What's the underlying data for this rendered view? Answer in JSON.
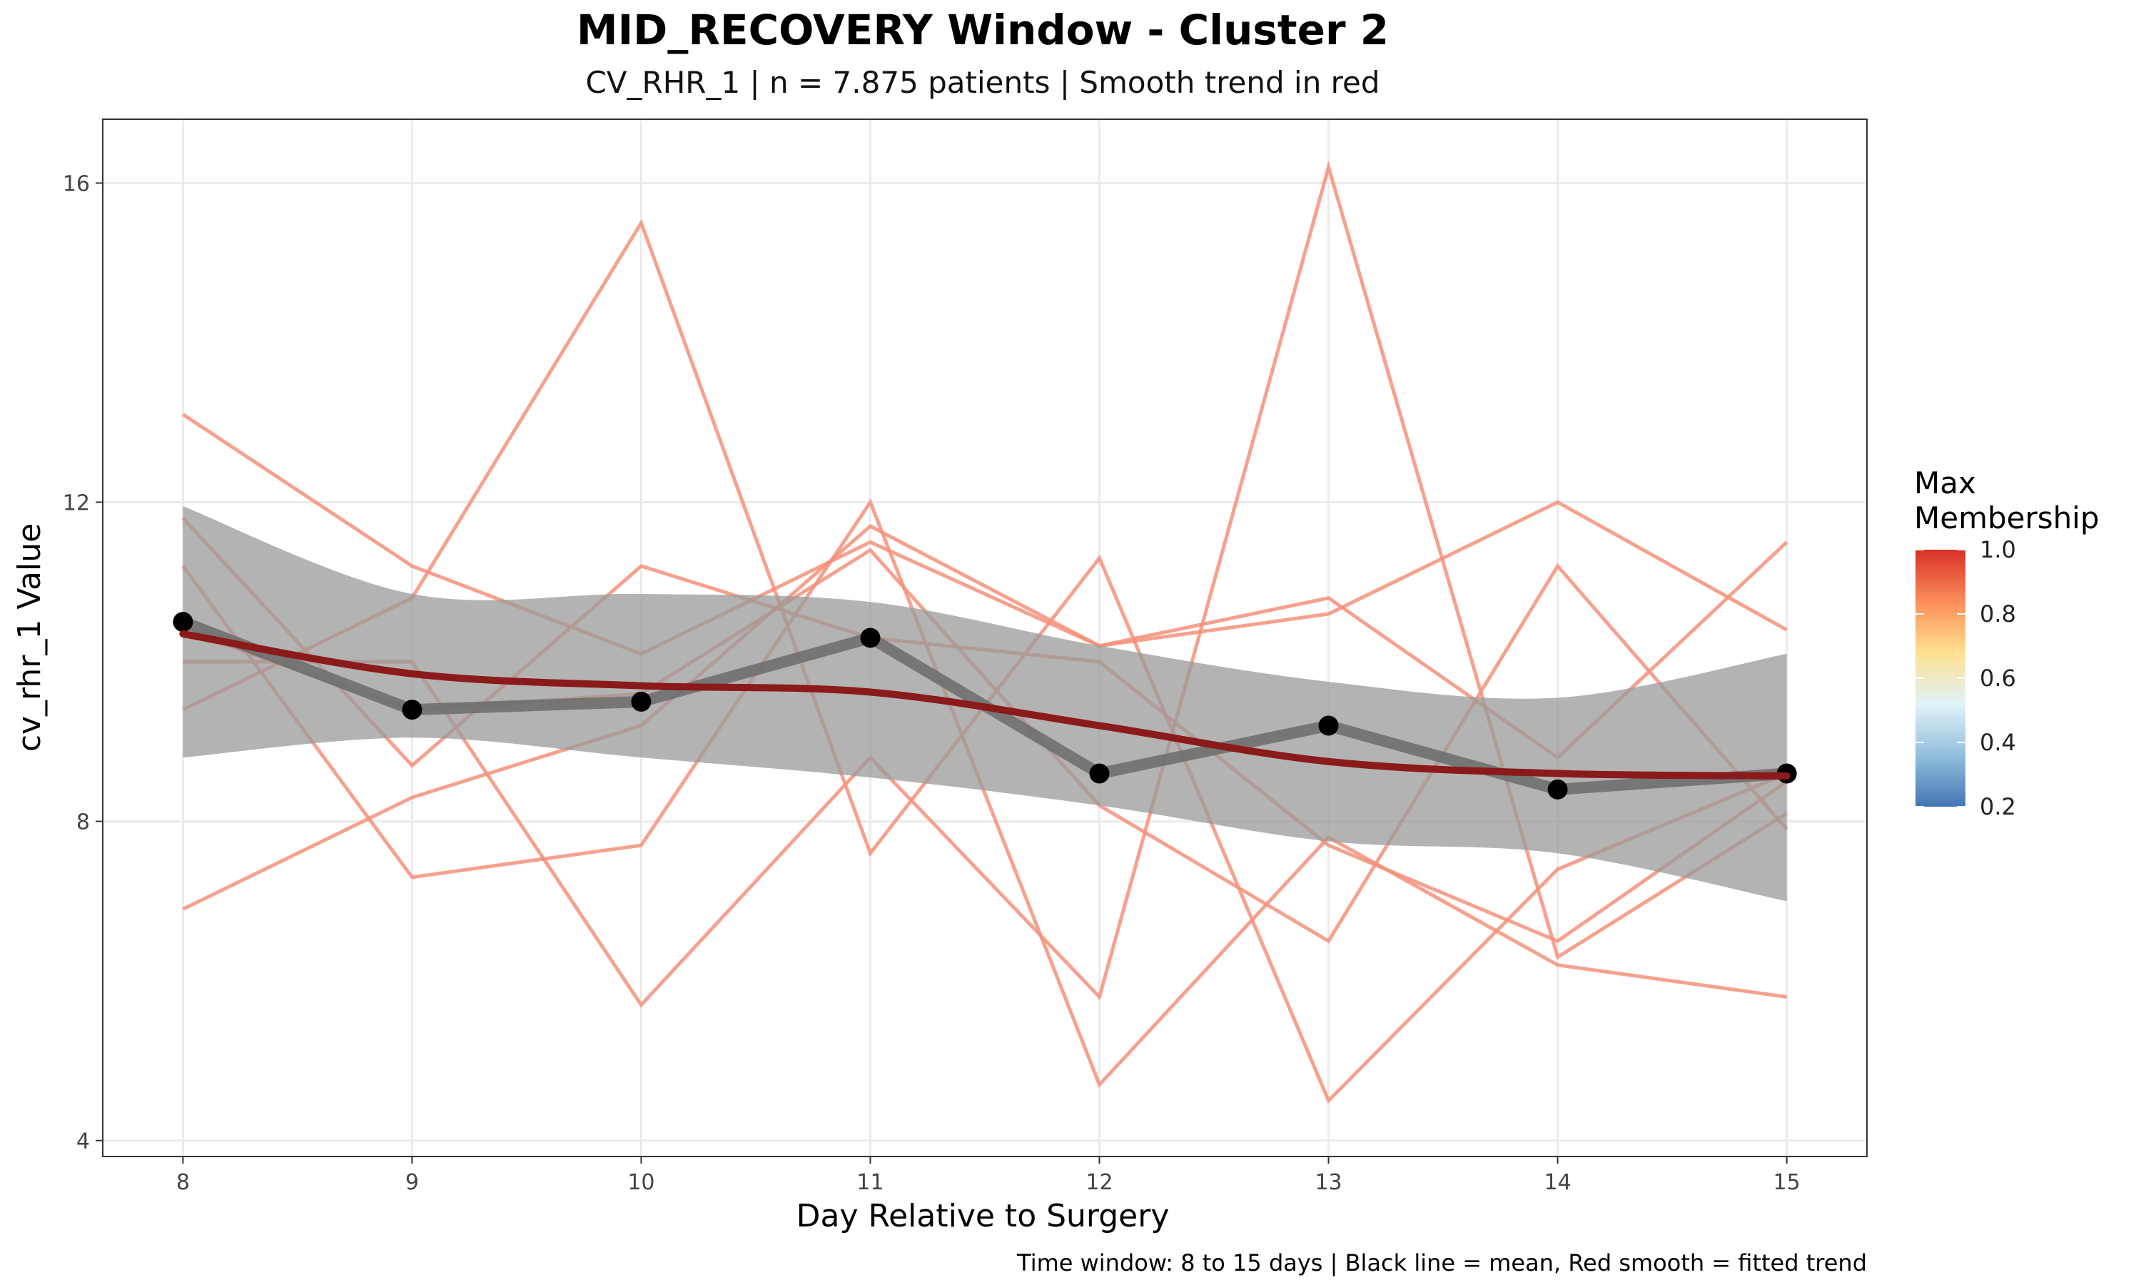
{
  "chart_data": {
    "type": "line",
    "title": "MID_RECOVERY Window - Cluster 2",
    "subtitle": "CV_RHR_1 | n = 7.875 patients | Smooth trend in red",
    "xlabel": "Day Relative to Surgery",
    "ylabel": "cv_rhr_1 Value",
    "caption": "Time window: 8 to 15 days | Black line = mean, Red smooth = fitted trend",
    "x": [
      8,
      9,
      10,
      11,
      12,
      13,
      14,
      15
    ],
    "xlim": [
      7.65,
      15.35
    ],
    "ylim": [
      3.8,
      16.8
    ],
    "x_ticks": [
      8,
      9,
      10,
      11,
      12,
      13,
      14,
      15
    ],
    "y_ticks": [
      4,
      8,
      12,
      16
    ],
    "grid": true,
    "individual_color": "#f4907a",
    "patients": [
      {
        "values": [
          13.1,
          11.2,
          10.1,
          11.5,
          10.2,
          10.8,
          8.8,
          11.5
        ]
      },
      {
        "values": [
          11.8,
          8.7,
          11.2,
          10.3,
          10.0,
          7.7,
          6.5,
          8.5
        ]
      },
      {
        "values": [
          9.4,
          10.8,
          15.5,
          7.6,
          11.3,
          4.5,
          7.4,
          8.6
        ]
      },
      {
        "values": [
          11.2,
          7.3,
          7.7,
          12.0,
          4.7,
          7.8,
          6.2,
          5.8
        ]
      },
      {
        "values": [
          6.9,
          8.3,
          9.2,
          11.7,
          10.2,
          10.6,
          12.0,
          10.4
        ]
      },
      {
        "values": [
          10.0,
          10.0,
          5.7,
          8.8,
          5.8,
          16.2,
          6.3,
          8.1
        ]
      },
      {
        "values": [
          10.4,
          9.4,
          9.6,
          11.4,
          8.2,
          6.5,
          11.2,
          7.9
        ]
      }
    ],
    "mean": {
      "name": "mean",
      "color": "#000000",
      "values": [
        10.5,
        9.4,
        9.5,
        10.3,
        8.6,
        9.2,
        8.4,
        8.6
      ]
    },
    "trend": {
      "name": "fitted trend",
      "color": "#8b1a1a",
      "values": [
        10.35,
        9.85,
        9.7,
        9.62,
        9.2,
        8.75,
        8.6,
        8.57
      ]
    },
    "confidence_band": {
      "lower": [
        8.8,
        9.05,
        8.8,
        8.55,
        8.2,
        7.75,
        7.6,
        7.0
      ],
      "upper": [
        11.95,
        10.85,
        10.85,
        10.75,
        10.2,
        9.75,
        9.55,
        10.1
      ]
    },
    "legend": {
      "title": "Max Membership",
      "title_lines": [
        "Max",
        "Membership"
      ],
      "labels": [
        "1.0",
        "0.8",
        "0.6",
        "0.4",
        "0.2"
      ],
      "gradient_colors": [
        "#d73027",
        "#fc8d59",
        "#fee090",
        "#e0f3f8",
        "#91bfdb",
        "#4575b4"
      ],
      "placement": "right"
    }
  }
}
